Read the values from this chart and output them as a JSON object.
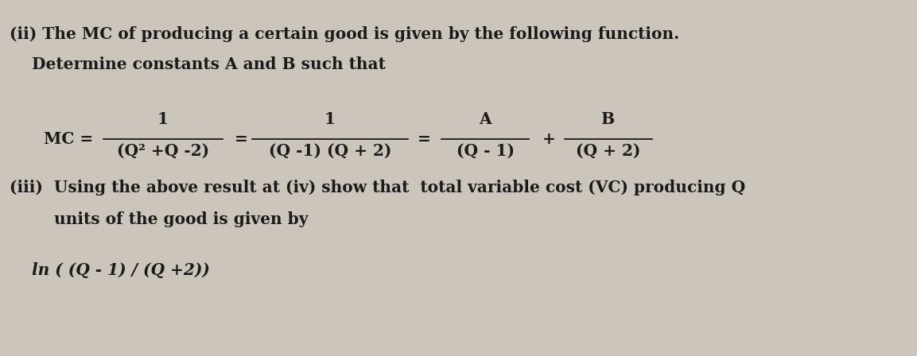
{
  "background_color": "#cbc5bc",
  "text_color": "#1a1a1a",
  "fig_width": 11.53,
  "fig_height": 4.48,
  "dpi": 100,
  "line1": "(ii) The MC of producing a certain good is given by the following function.",
  "line2": "    Determine constants A and B such that",
  "line4": "(iii)  Using the above result at (iv) show that  total variable cost (VC) producing Q",
  "line5": "        units of the good is given by",
  "line6": "    ln ( (Q - 1) / (Q +2))",
  "fs_main": 14.5,
  "fs_math": 14.5,
  "frac1_num": "1",
  "frac1_den": "(Q² +Q -2)",
  "frac2_num": "1",
  "frac2_den": "(Q -1) (Q + 2)",
  "frac3_num": "A",
  "frac3_den": "(Q - 1)",
  "frac4_num": "B",
  "frac4_den": "(Q + 2)"
}
